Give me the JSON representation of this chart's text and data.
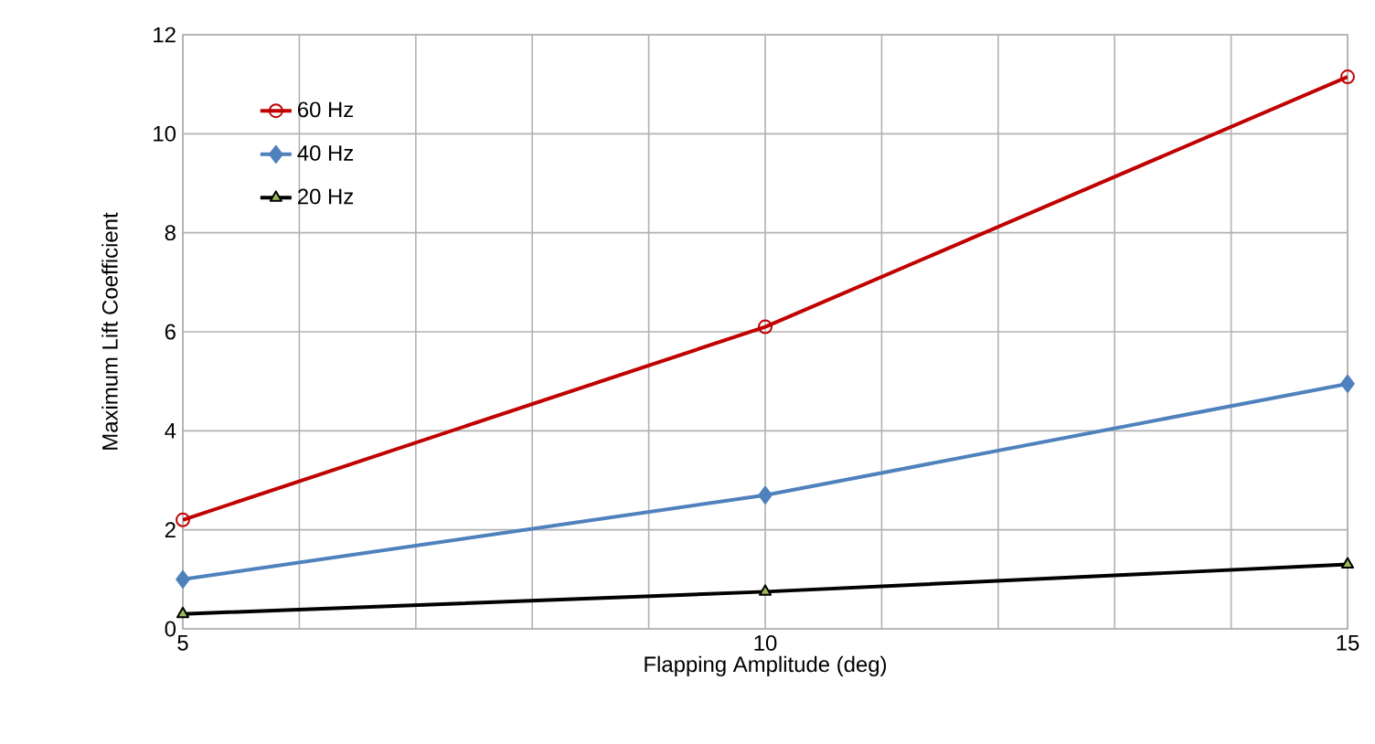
{
  "chart_data": {
    "type": "line",
    "xlabel": "Flapping Amplitude (deg)",
    "ylabel": "Maximum Lift Coefficient",
    "x": [
      5,
      10,
      15
    ],
    "series": [
      {
        "name": "60 Hz",
        "color": "#c00000",
        "marker": "circle",
        "values": [
          2.2,
          6.1,
          11.15
        ]
      },
      {
        "name": "40 Hz",
        "color": "#4f81bd",
        "marker": "diamond",
        "values": [
          1.0,
          2.7,
          4.95
        ]
      },
      {
        "name": "20 Hz",
        "color": "#000000",
        "marker": "triangle",
        "values": [
          0.3,
          0.75,
          1.3
        ]
      }
    ],
    "xlim": [
      5,
      15
    ],
    "ylim": [
      0,
      12
    ],
    "xticks": [
      5,
      {
        "value": 6,
        "label": null
      },
      {
        "value": 7,
        "label": null
      },
      {
        "value": 8,
        "label": null
      },
      {
        "value": 9,
        "label": null
      },
      10,
      {
        "value": 11,
        "label": null
      },
      {
        "value": 12,
        "label": null
      },
      {
        "value": 13,
        "label": null
      },
      {
        "value": 14,
        "label": null
      },
      15
    ],
    "yticks": [
      0,
      2,
      4,
      6,
      8,
      10,
      12
    ],
    "grid": true,
    "legend": "top left",
    "line_style": "solid"
  }
}
